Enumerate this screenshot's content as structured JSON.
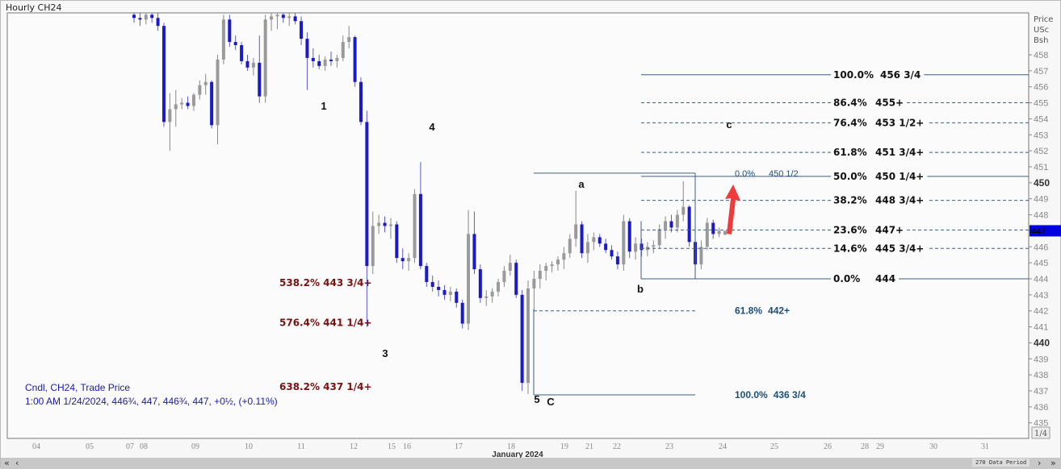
{
  "title": "Hourly CH24",
  "price_axis_header": [
    "Price",
    "USc",
    "Bsh"
  ],
  "info": {
    "line1": "Cndl, CH24, Trade Price",
    "line2": "1:00 AM 1/24/2024, 446¾, 447, 446¾, 447, +0½, (+0.11%)"
  },
  "scrollbar": {
    "first": "«",
    "prev": "‹",
    "next": "›",
    "last": "»",
    "period": "270 Data Period",
    "fraction": "1/4"
  },
  "colors": {
    "up_candle": "#9a9a9a",
    "down_candle": "#1a1ac8",
    "fib_line": "#3d5f8a",
    "red_label": "#7a1010",
    "blue_label": "#1f4e79",
    "arrow": "#ee3b3b",
    "current_price_bg": "#0000e0"
  },
  "chart_data": {
    "type": "candlestick",
    "title": "Hourly CH24",
    "ylabel": "Price USc Bsh",
    "ylim": [
      434.6,
      459.6
    ],
    "yticks": [
      458,
      457,
      456,
      455,
      454,
      453,
      452,
      451,
      450,
      449,
      448,
      447,
      446,
      445,
      444,
      443,
      442,
      441,
      440,
      439,
      438,
      437,
      436,
      435
    ],
    "ytick_bold": [
      450,
      440
    ],
    "current_price": "447",
    "xticks": [
      "04",
      "05",
      "07",
      "08",
      "09",
      "10",
      "11",
      "12",
      "15",
      "16",
      "17",
      "18",
      "19",
      "21",
      "22",
      "23",
      "24",
      "25",
      "26",
      "28",
      "29",
      "30",
      "31"
    ],
    "xlabel": "January 2024",
    "candles": [
      [
        460.5,
        461,
        460,
        460.3
      ],
      [
        460.3,
        460.8,
        459.8,
        460.2
      ],
      [
        460.2,
        460.8,
        459.9,
        460.5
      ],
      [
        460.5,
        461,
        460,
        460.3
      ],
      [
        460.3,
        460.6,
        459.5,
        459.8
      ],
      [
        459.8,
        460,
        453.5,
        453.8
      ],
      [
        453.8,
        455.6,
        452,
        454.6
      ],
      [
        454.6,
        455.8,
        453.5,
        454.9
      ],
      [
        454.9,
        455.3,
        454.6,
        455
      ],
      [
        455,
        455.4,
        454.6,
        454.8
      ],
      [
        454.8,
        455.6,
        454.5,
        455.5
      ],
      [
        455.5,
        456.4,
        455.2,
        456.1
      ],
      [
        456.1,
        456.8,
        455.5,
        456.3
      ],
      [
        456.3,
        456.4,
        453.4,
        453.6
      ],
      [
        453.6,
        458,
        452.4,
        457.7
      ],
      [
        457.7,
        460.5,
        457.4,
        460.2
      ],
      [
        460.2,
        460.5,
        458.5,
        458.8
      ],
      [
        458.8,
        459.2,
        458.3,
        458.6
      ],
      [
        458.6,
        458.8,
        457.4,
        457.6
      ],
      [
        457.6,
        458,
        457,
        457.2
      ],
      [
        457.2,
        457.8,
        456.7,
        457.5
      ],
      [
        457.5,
        459.2,
        455,
        455.4
      ],
      [
        455.4,
        460.5,
        455,
        460.2
      ],
      [
        460.2,
        460.8,
        459.5,
        460.4
      ],
      [
        460.4,
        460.8,
        459.6,
        460.5
      ],
      [
        460.5,
        460.8,
        460,
        460.3
      ],
      [
        460.3,
        460.6,
        459.8,
        460.4
      ],
      [
        460.4,
        460.7,
        459.9,
        460.1
      ],
      [
        460.1,
        460.4,
        458.6,
        459
      ],
      [
        459,
        459.4,
        455.8,
        457.8
      ],
      [
        457.8,
        458.4,
        457.2,
        457.6
      ],
      [
        457.6,
        458,
        457.1,
        457.3
      ],
      [
        457.3,
        457.9,
        457,
        457.7
      ],
      [
        457.7,
        458.2,
        457.3,
        457.6
      ],
      [
        457.6,
        458,
        457.2,
        457.8
      ],
      [
        457.8,
        459.2,
        457.6,
        458.8
      ],
      [
        458.8,
        459.8,
        458.4,
        459.1
      ],
      [
        459.1,
        459.2,
        456,
        456.3
      ],
      [
        456.3,
        456.6,
        453.6,
        453.8
      ],
      [
        453.8,
        454.5,
        441,
        444.8
      ],
      [
        444.8,
        448.2,
        444.3,
        447.3
      ],
      [
        447.3,
        448,
        446.8,
        447.5
      ],
      [
        447.5,
        447.9,
        446.9,
        447.3
      ],
      [
        447.3,
        447.8,
        446.5,
        447.4
      ],
      [
        447.4,
        447.6,
        445,
        445.3
      ],
      [
        445.3,
        445.9,
        444.6,
        445.1
      ],
      [
        445.1,
        445.6,
        444.5,
        445.3
      ],
      [
        445.3,
        449.6,
        445,
        449.3
      ],
      [
        449.3,
        451.3,
        444.6,
        444.8
      ],
      [
        444.8,
        445,
        443.5,
        443.8
      ],
      [
        443.8,
        444.2,
        443.2,
        443.5
      ],
      [
        443.5,
        443.9,
        442.9,
        443.3
      ],
      [
        443.3,
        443.6,
        442.7,
        443
      ],
      [
        443,
        443.5,
        442.6,
        443.2
      ],
      [
        443.2,
        443.4,
        442.2,
        442.5
      ],
      [
        442.5,
        442.7,
        440.9,
        441.2
      ],
      [
        441.2,
        448.3,
        440.8,
        446.8
      ],
      [
        446.8,
        448.2,
        444.3,
        444.6
      ],
      [
        444.6,
        444.9,
        442.5,
        442.8
      ],
      [
        442.8,
        443.3,
        442.3,
        442.9
      ],
      [
        442.9,
        443.4,
        442.5,
        443.2
      ],
      [
        443.2,
        444,
        442.9,
        443.8
      ],
      [
        443.8,
        444.8,
        443.5,
        444.5
      ],
      [
        444.5,
        445.5,
        444.2,
        445
      ],
      [
        445,
        445.2,
        442.8,
        443
      ],
      [
        443,
        443.3,
        437,
        437.5
      ],
      [
        437.5,
        443.9,
        436.8,
        443.4
      ],
      [
        443.4,
        444.5,
        442,
        444
      ],
      [
        444,
        444.9,
        443.4,
        444.5
      ],
      [
        444.5,
        445,
        443.9,
        444.8
      ],
      [
        444.8,
        445.1,
        444.4,
        444.9
      ],
      [
        444.9,
        445.4,
        444.5,
        445.2
      ],
      [
        445.2,
        446,
        444.6,
        445.6
      ],
      [
        445.6,
        446.8,
        445.3,
        446.5
      ],
      [
        446.5,
        449.5,
        446,
        447.4
      ],
      [
        447.4,
        447.6,
        445.3,
        445.6
      ],
      [
        445.6,
        446.8,
        445,
        446.3
      ],
      [
        446.3,
        446.9,
        445.8,
        446.6
      ],
      [
        446.6,
        446.8,
        446,
        446.2
      ],
      [
        446.2,
        446.5,
        445.6,
        445.8
      ],
      [
        445.8,
        446.1,
        445.2,
        445.4
      ],
      [
        445.4,
        445.7,
        444.6,
        444.9
      ],
      [
        444.9,
        448,
        444.5,
        447.6
      ],
      [
        447.6,
        447.8,
        445.3,
        445.7
      ],
      [
        445.7,
        446.6,
        445.2,
        446.2
      ],
      [
        446.2,
        446.5,
        445.4,
        445.8
      ],
      [
        445.8,
        446.3,
        445.4,
        446
      ],
      [
        446,
        446.4,
        445.6,
        446.1
      ],
      [
        446.1,
        447.4,
        445.9,
        447.1
      ],
      [
        447.1,
        447.9,
        446.5,
        447.6
      ],
      [
        447.6,
        448,
        446.9,
        447.2
      ],
      [
        447.2,
        448.3,
        446.9,
        448
      ],
      [
        448,
        450.1,
        447.6,
        448.5
      ],
      [
        448.5,
        448.6,
        446,
        446.3
      ],
      [
        446.3,
        446.5,
        444.5,
        444.9
      ],
      [
        444.9,
        446.4,
        444.6,
        446
      ],
      [
        446,
        447.8,
        445.8,
        447.5
      ],
      [
        447.5,
        447.7,
        446.5,
        446.8
      ],
      [
        446.8,
        447.2,
        446.6,
        447
      ],
      [
        446.75,
        447,
        446.75,
        447
      ]
    ],
    "fib_right": [
      {
        "pct": "100.0%",
        "label": "456 3/4",
        "price": 456.75,
        "dashed": false
      },
      {
        "pct": "86.4%",
        "label": "455+",
        "price": 455.0,
        "dashed": true
      },
      {
        "pct": "76.4%",
        "label": "453 1/2+",
        "price": 453.75,
        "dashed": true
      },
      {
        "pct": "61.8%",
        "label": "451 3/4+",
        "price": 451.9,
        "dashed": true
      },
      {
        "pct": "50.0%",
        "label": "450 1/4+",
        "price": 450.4,
        "dashed": false
      },
      {
        "pct": "38.2%",
        "label": "448 3/4+",
        "price": 448.9,
        "dashed": true
      },
      {
        "pct": "23.6%",
        "label": "447+",
        "price": 447.05,
        "dashed": true
      },
      {
        "pct": "14.6%",
        "label": "445 3/4+",
        "price": 445.9,
        "dashed": true
      },
      {
        "pct": "0.0%",
        "label": "444",
        "price": 444.0,
        "dashed": false
      }
    ],
    "fib_ab": {
      "pct": "0.0%",
      "label": "450 1/2",
      "price": 450.5
    },
    "fib_lower": [
      {
        "pct": "61.8%",
        "label": "442+",
        "price": 442.0,
        "dashed": true
      },
      {
        "pct": "100.0%",
        "label": "436 3/4",
        "price": 436.75,
        "dashed": false
      }
    ],
    "extension_labels": [
      {
        "text": "538.2% 443 3/4+",
        "price": 443.75
      },
      {
        "text": "576.4% 441 1/4+",
        "price": 441.25
      },
      {
        "text": "638.2% 437 1/4+",
        "price": 437.25
      }
    ],
    "wave_labels": [
      "1",
      "4",
      "3",
      "5",
      "C",
      "a",
      "b",
      "c"
    ]
  }
}
